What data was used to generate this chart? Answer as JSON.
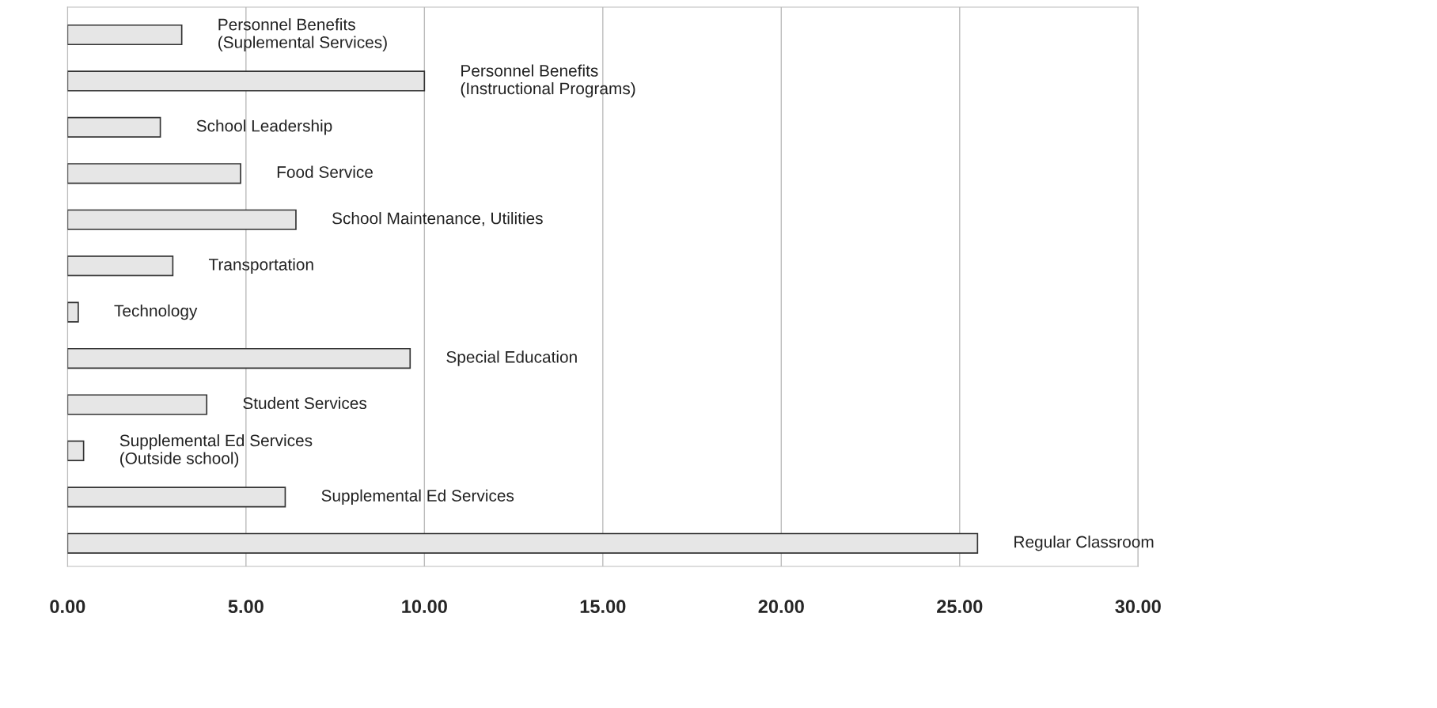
{
  "chart_data": {
    "type": "bar",
    "orientation": "horizontal",
    "categories": [
      "Personnel Benefits\n(Suplemental Services)",
      "Personnel Benefits\n(Instructional Programs)",
      "School Leadership",
      "Food Service",
      "School Maintenance, Utilities",
      "Transportation",
      "Technology",
      "Special Education",
      "Student Services",
      "Supplemental Ed Services\n(Outside school)",
      "Supplemental Ed Services",
      "Regular Classroom"
    ],
    "values": [
      3.2,
      10.0,
      2.6,
      4.85,
      6.4,
      2.95,
      0.3,
      9.6,
      3.9,
      0.45,
      6.1,
      25.5
    ],
    "color": "#e6e6e6",
    "xlim": [
      0,
      30
    ],
    "xticks": [
      {
        "value": 0,
        "label": "0.00"
      },
      {
        "value": 5,
        "label": "5.00"
      },
      {
        "value": 10,
        "label": "10.00"
      },
      {
        "value": 15,
        "label": "15.00"
      },
      {
        "value": 20,
        "label": "20.00"
      },
      {
        "value": 25,
        "label": "25.00"
      },
      {
        "value": 30,
        "label": "30.00"
      }
    ],
    "grid": "x",
    "tick_labels": "x"
  }
}
